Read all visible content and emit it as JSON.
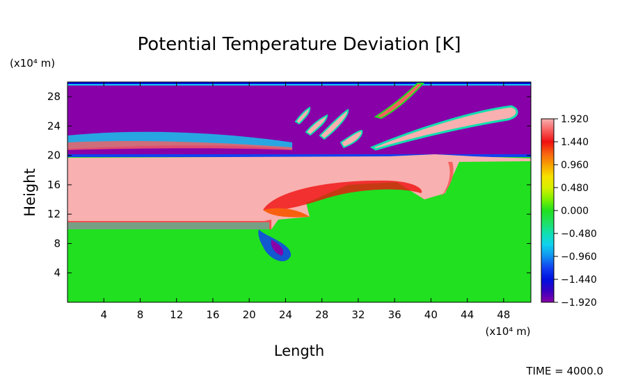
{
  "chart_data": {
    "type": "heatmap",
    "title": "Potential Temperature Deviation [K]",
    "xlabel": "Length",
    "ylabel": "Height",
    "x_units": "(x10⁴ m)",
    "y_units": "(x10⁴ m)",
    "xlim": [
      0,
      51
    ],
    "ylim": [
      0,
      30
    ],
    "x_ticks": [
      4,
      8,
      12,
      16,
      20,
      24,
      28,
      32,
      36,
      40,
      44,
      48
    ],
    "y_ticks": [
      4,
      8,
      12,
      16,
      20,
      24,
      28
    ],
    "colorbar": {
      "labels": [
        "1.920",
        "1.440",
        "0.960",
        "0.480",
        "0.000",
        "−0.480",
        "−0.960",
        "−1.440",
        "−1.920"
      ],
      "values": [
        1.92,
        1.44,
        0.96,
        0.48,
        0.0,
        -0.48,
        -0.96,
        -1.44,
        -1.92
      ],
      "stops": [
        {
          "v": 1.92,
          "color": "#f8b0b0"
        },
        {
          "v": 1.68,
          "color": "#f86060"
        },
        {
          "v": 1.44,
          "color": "#f01010"
        },
        {
          "v": 1.2,
          "color": "#f86010"
        },
        {
          "v": 0.96,
          "color": "#f8a000"
        },
        {
          "v": 0.72,
          "color": "#f8e000"
        },
        {
          "v": 0.48,
          "color": "#d8f000"
        },
        {
          "v": 0.24,
          "color": "#80f000"
        },
        {
          "v": 0.0,
          "color": "#20e020"
        },
        {
          "v": -0.24,
          "color": "#20e060"
        },
        {
          "v": -0.48,
          "color": "#10e0b0"
        },
        {
          "v": -0.72,
          "color": "#10d0f0"
        },
        {
          "v": -0.96,
          "color": "#1090f0"
        },
        {
          "v": -1.2,
          "color": "#1040f0"
        },
        {
          "v": -1.44,
          "color": "#0010e0"
        },
        {
          "v": -1.68,
          "color": "#3800c0"
        },
        {
          "v": -1.92,
          "color": "#8800a8"
        }
      ]
    },
    "fields": {
      "stratosphere": -1.92,
      "warm_layer": 1.92,
      "lower_domain": 0.05,
      "interface_band": -0.9
    },
    "annotation": "TIME = 4000.0"
  }
}
